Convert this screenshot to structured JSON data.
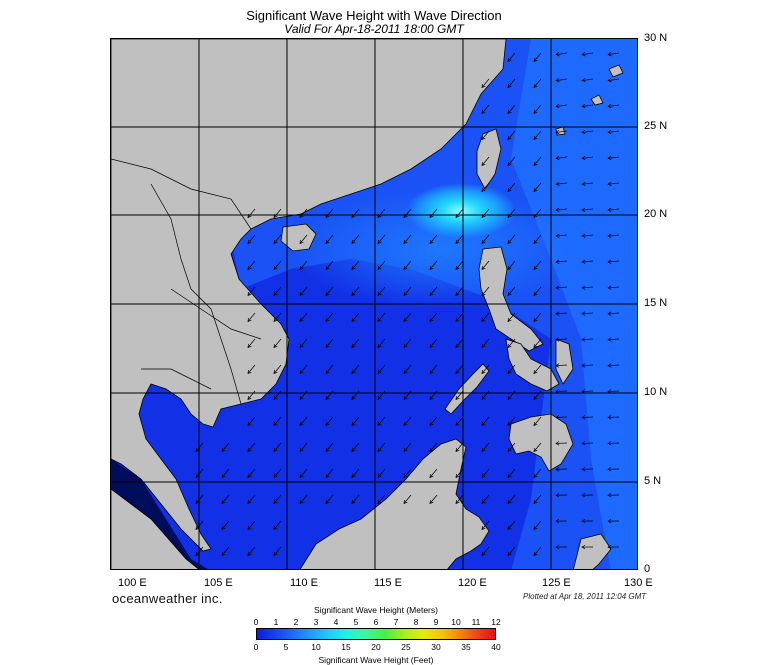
{
  "title": "Significant Wave Height with Wave Direction",
  "subtitle": "Valid For Apr-18-2011 18:00 GMT",
  "lat_labels": [
    "30 N",
    "25 N",
    "20 N",
    "15 N",
    "10 N",
    "5 N",
    "0"
  ],
  "lon_labels": [
    "100 E",
    "105 E",
    "110 E",
    "115 E",
    "120 E",
    "125 E",
    "130 E"
  ],
  "brand": "oceanweather inc.",
  "plotted": "Plotted at Apr 18, 2011 12:04 GMT",
  "colorbar": {
    "top_label": "Significant Wave Height (Meters)",
    "bottom_label": "Significant Wave Height (Feet)",
    "meters_ticks": [
      "0",
      "1",
      "2",
      "3",
      "4",
      "5",
      "6",
      "7",
      "8",
      "9",
      "10",
      "11",
      "12"
    ],
    "feet_ticks": [
      "0",
      "5",
      "10",
      "15",
      "20",
      "25",
      "30",
      "35",
      "40"
    ]
  },
  "colors": {
    "land": "#c0c0c0",
    "ocean_low": "#1030e0",
    "ocean_mid": "#1e6cff",
    "peak": "#4ef8ff",
    "gridline": "#000000"
  }
}
